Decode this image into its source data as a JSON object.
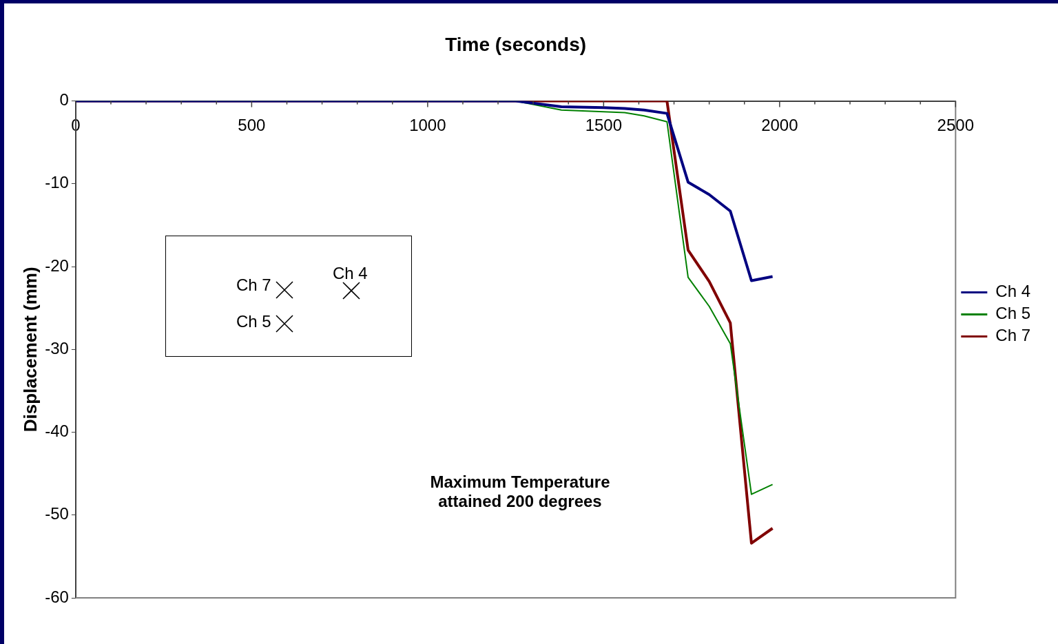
{
  "chart_data": {
    "type": "line",
    "xlabel": "Time (seconds)",
    "ylabel": "Displacement (mm)",
    "xlim": [
      0,
      2500
    ],
    "xticks": [
      0,
      {
        "value": 100,
        "label": null
      },
      {
        "value": 200,
        "label": null
      },
      {
        "value": 300,
        "label": null
      },
      {
        "value": 400,
        "label": null
      },
      500,
      {
        "value": 600,
        "label": null
      },
      {
        "value": 700,
        "label": null
      },
      {
        "value": 800,
        "label": null
      },
      {
        "value": 900,
        "label": null
      },
      1000,
      {
        "value": 1100,
        "label": null
      },
      {
        "value": 1200,
        "label": null
      },
      {
        "value": 1300,
        "label": null
      },
      {
        "value": 1400,
        "label": null
      },
      1500,
      {
        "value": 1600,
        "label": null
      },
      {
        "value": 1700,
        "label": null
      },
      {
        "value": 1800,
        "label": null
      },
      {
        "value": 1900,
        "label": null
      },
      2000,
      {
        "value": 2100,
        "label": null
      },
      {
        "value": 2200,
        "label": null
      },
      {
        "value": 2300,
        "label": null
      },
      {
        "value": 2400,
        "label": null
      },
      2500
    ],
    "ylim": [
      -60,
      0
    ],
    "yticks": [
      0,
      -10,
      -20,
      -30,
      -40,
      -50,
      -60
    ],
    "grid": false,
    "legend": "right",
    "marker": "none",
    "line_style": "solid",
    "series": [
      {
        "name": "Ch 4",
        "color": "#000080",
        "x": [
          0,
          1250,
          1380,
          1500,
          1560,
          1615,
          1680,
          1740,
          1800,
          1860,
          1920,
          1980
        ],
        "values": [
          0,
          0,
          -0.7,
          -0.8,
          -0.9,
          -1.1,
          -1.5,
          -9.8,
          -11.3,
          -13.3,
          -21.7,
          -21.2
        ]
      },
      {
        "name": "Ch 5",
        "color": "#008000",
        "x": [
          0,
          1250,
          1380,
          1500,
          1560,
          1615,
          1680,
          1740,
          1800,
          1860,
          1920,
          1980
        ],
        "values": [
          0,
          0,
          -1.1,
          -1.3,
          -1.4,
          -1.8,
          -2.5,
          -21.3,
          -24.8,
          -29.3,
          -47.5,
          -46.3
        ]
      },
      {
        "name": "Ch 7",
        "color": "#800000",
        "x": [
          0,
          1250,
          1680,
          1740,
          1800,
          1860,
          1920,
          1980
        ],
        "values": [
          0,
          0,
          0,
          -18,
          -21.8,
          -26.8,
          -53.4,
          -51.6
        ]
      }
    ],
    "annotations": [
      "Ch 7",
      "Ch 4",
      "Ch 5",
      "Maximum Temperature\nattained 200 degrees"
    ]
  }
}
